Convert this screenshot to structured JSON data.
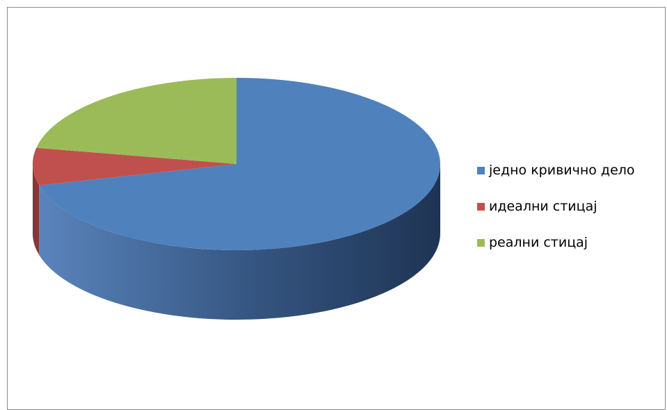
{
  "chart_data": {
    "type": "pie",
    "style": "3d",
    "categories": [
      "једно кривично дело",
      "идеални стицај",
      "реални стицај"
    ],
    "values": [
      71,
      7,
      22
    ],
    "colors": [
      "#4F81BD",
      "#C0504D",
      "#9BBB59"
    ],
    "legend": "right"
  }
}
